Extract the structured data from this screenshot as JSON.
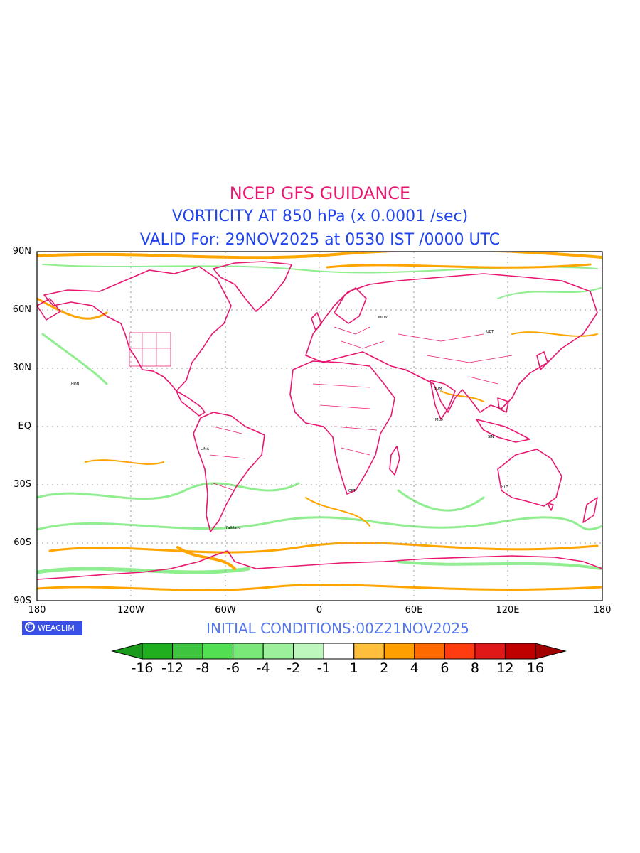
{
  "title": {
    "line1": "NCEP GFS GUIDANCE",
    "line2": "VORTICITY AT 850 hPa (x 0.0001 /sec)",
    "line3": "VALID For: 29NOV2025 at 0530 IST /0000 UTC"
  },
  "lat_labels": [
    "90N",
    "60N",
    "30N",
    "EQ",
    "30S",
    "60S",
    "90S"
  ],
  "lon_labels": [
    "180",
    "120W",
    "60W",
    "0",
    "60E",
    "120E",
    "180"
  ],
  "initial_conditions": "INITIAL  CONDITIONS:00Z21NOV2025",
  "badge": {
    "text": "WEACLIM",
    "icon": "circle-c-logo-icon"
  },
  "colorbar": {
    "labels": [
      "-16",
      "-12",
      "-8",
      "-6",
      "-4",
      "-2",
      "-1",
      "1",
      "2",
      "4",
      "6",
      "8",
      "12",
      "16"
    ],
    "colors": [
      "#1a9a1a",
      "#1faf1f",
      "#3ec43e",
      "#52e052",
      "#79e879",
      "#9cf09c",
      "#bdf7bd",
      "#ffffff",
      "#ffbf3c",
      "#ff9f00",
      "#ff6a00",
      "#ff3c10",
      "#e01818",
      "#c00000",
      "#a00000"
    ]
  },
  "stations": [
    "MCW",
    "UBT",
    "HON",
    "BOM",
    "MLD",
    "PTH",
    "Falkland",
    "LIMA",
    "OPT",
    "SIN"
  ],
  "colors": {
    "coastline": "#e8176f",
    "title_pink": "#e8176f",
    "title_blue": "#2244ee",
    "positive": "#ffa500",
    "negative": "#90ee90"
  }
}
